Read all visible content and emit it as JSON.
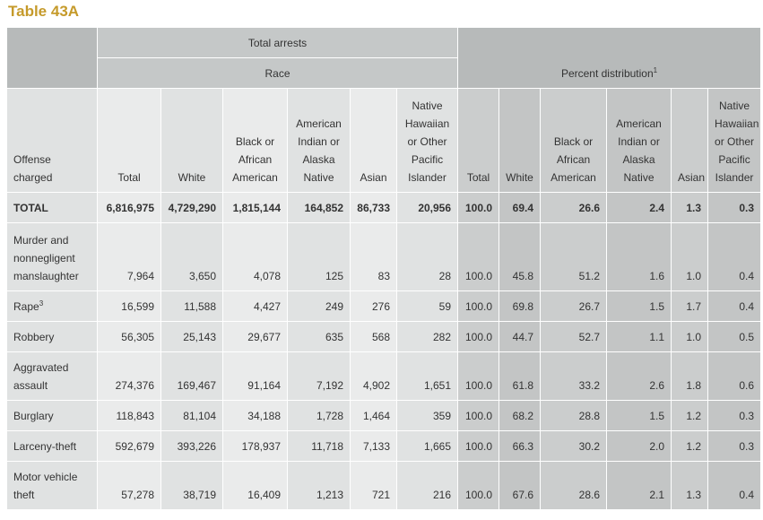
{
  "title": "Table 43A",
  "header": {
    "total_arrests": "Total arrests",
    "race": "Race",
    "percent_distribution": "Percent distribution",
    "percent_sup": "1",
    "columns": {
      "offense": [
        "Offense",
        "charged"
      ],
      "total": "Total",
      "white": "White",
      "black": [
        "Black or",
        "African",
        "American"
      ],
      "aian": [
        "American",
        "Indian or",
        "Alaska",
        "Native"
      ],
      "asian": "Asian",
      "nhopi": [
        "Native",
        "Hawaiian",
        "or Other",
        "Pacific",
        "Islander"
      ]
    }
  },
  "rows": [
    {
      "label": [
        "TOTAL"
      ],
      "sup": "",
      "arrests": [
        "6,816,975",
        "4,729,290",
        "1,815,144",
        "164,852",
        "86,733",
        "20,956"
      ],
      "percent": [
        "100.0",
        "69.4",
        "26.6",
        "2.4",
        "1.3",
        "0.3"
      ]
    },
    {
      "label": [
        "Murder and",
        "nonnegligent",
        "manslaughter"
      ],
      "sup": "",
      "arrests": [
        "7,964",
        "3,650",
        "4,078",
        "125",
        "83",
        "28"
      ],
      "percent": [
        "100.0",
        "45.8",
        "51.2",
        "1.6",
        "1.0",
        "0.4"
      ]
    },
    {
      "label": [
        "Rape"
      ],
      "sup": "3",
      "arrests": [
        "16,599",
        "11,588",
        "4,427",
        "249",
        "276",
        "59"
      ],
      "percent": [
        "100.0",
        "69.8",
        "26.7",
        "1.5",
        "1.7",
        "0.4"
      ]
    },
    {
      "label": [
        "Robbery"
      ],
      "sup": "",
      "arrests": [
        "56,305",
        "25,143",
        "29,677",
        "635",
        "568",
        "282"
      ],
      "percent": [
        "100.0",
        "44.7",
        "52.7",
        "1.1",
        "1.0",
        "0.5"
      ]
    },
    {
      "label": [
        "Aggravated",
        "assault"
      ],
      "sup": "",
      "arrests": [
        "274,376",
        "169,467",
        "91,164",
        "7,192",
        "4,902",
        "1,651"
      ],
      "percent": [
        "100.0",
        "61.8",
        "33.2",
        "2.6",
        "1.8",
        "0.6"
      ]
    },
    {
      "label": [
        "Burglary"
      ],
      "sup": "",
      "arrests": [
        "118,843",
        "81,104",
        "34,188",
        "1,728",
        "1,464",
        "359"
      ],
      "percent": [
        "100.0",
        "68.2",
        "28.8",
        "1.5",
        "1.2",
        "0.3"
      ]
    },
    {
      "label": [
        "Larceny-theft"
      ],
      "sup": "",
      "arrests": [
        "592,679",
        "393,226",
        "178,937",
        "11,718",
        "7,133",
        "1,665"
      ],
      "percent": [
        "100.0",
        "66.3",
        "30.2",
        "2.0",
        "1.2",
        "0.3"
      ]
    },
    {
      "label": [
        "Motor vehicle",
        "theft"
      ],
      "sup": "",
      "arrests": [
        "57,278",
        "38,719",
        "16,409",
        "1,213",
        "721",
        "216"
      ],
      "percent": [
        "100.0",
        "67.6",
        "28.6",
        "2.1",
        "1.3",
        "0.4"
      ]
    }
  ]
}
